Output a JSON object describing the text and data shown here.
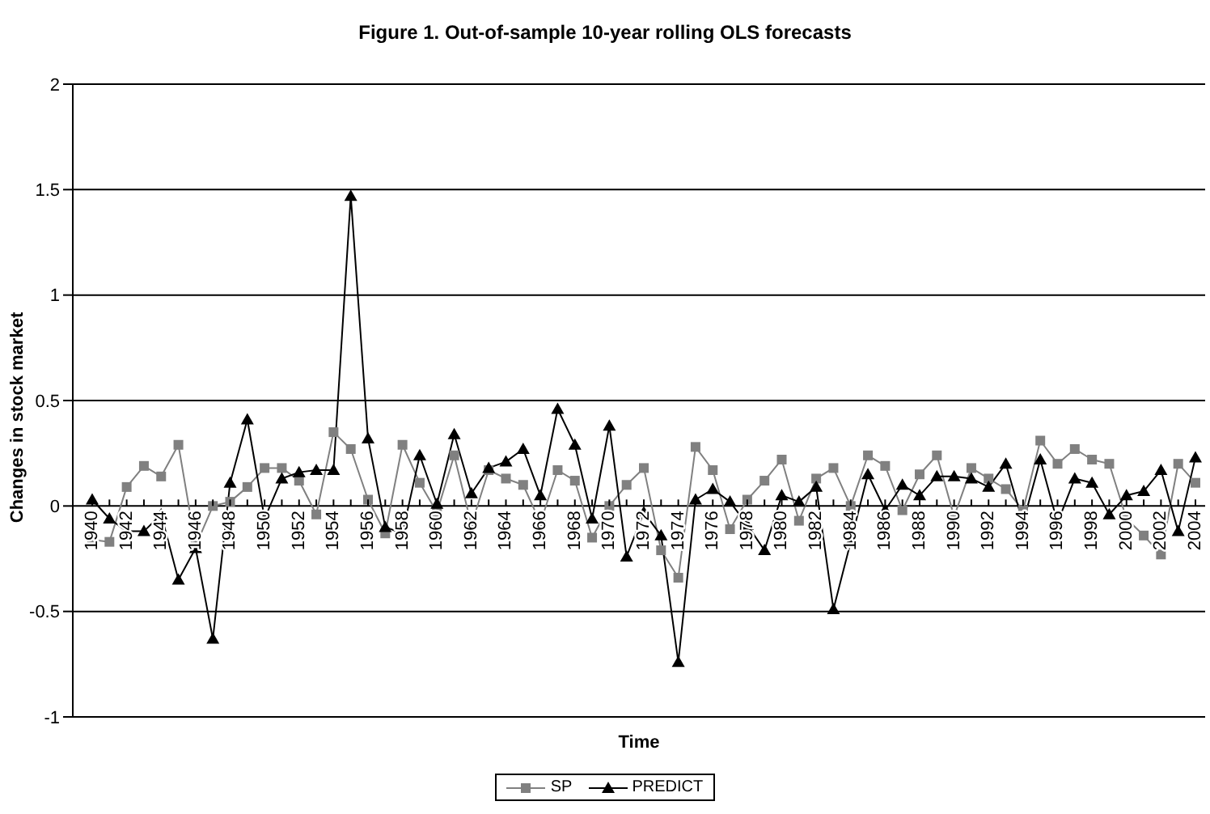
{
  "chart_data": {
    "type": "line",
    "title": "Figure 1. Out-of-sample 10-year rolling OLS forecasts",
    "xlabel": "Time",
    "ylabel": "Changes in stock market",
    "categories": [
      "1940",
      null,
      "1942",
      null,
      "1944",
      null,
      "1946",
      null,
      "1948",
      null,
      "1950",
      null,
      "1952",
      null,
      "1954",
      null,
      "1956",
      null,
      "1958",
      null,
      "1960",
      null,
      "1962",
      null,
      "1964",
      null,
      "1966",
      null,
      "1968",
      null,
      "1970",
      null,
      "1972",
      null,
      "1974",
      null,
      "1976",
      null,
      "1978",
      null,
      "1980",
      null,
      "1982",
      null,
      "1984",
      null,
      "1986",
      null,
      "1988",
      null,
      "1990",
      null,
      "1992",
      null,
      "1994",
      null,
      "1996",
      null,
      "1998",
      null,
      "2000",
      null,
      "2002",
      null,
      "2004"
    ],
    "series": [
      {
        "name": "SP",
        "color": "#808080",
        "marker": "square",
        "values": [
          -0.16,
          -0.17,
          0.09,
          0.19,
          0.14,
          0.29,
          -0.19,
          0.0,
          0.02,
          0.09,
          0.18,
          0.18,
          0.12,
          -0.04,
          0.35,
          0.27,
          0.03,
          -0.13,
          0.29,
          0.11,
          -0.03,
          0.24,
          -0.09,
          0.17,
          0.13,
          0.1,
          -0.08,
          0.17,
          0.12,
          -0.15,
          0.0,
          0.1,
          0.18,
          -0.21,
          -0.34,
          0.28,
          0.17,
          -0.11,
          0.03,
          0.12,
          0.22,
          -0.07,
          0.13,
          0.18,
          0.0,
          0.24,
          0.19,
          -0.02,
          0.15,
          0.24,
          -0.05,
          0.18,
          0.13,
          0.08,
          -0.02,
          0.31,
          0.2,
          0.27,
          0.22,
          0.2,
          -0.06,
          -0.14,
          -0.23,
          0.2,
          0.11
        ]
      },
      {
        "name": "PREDICT",
        "color": "#000000",
        "marker": "triangle",
        "values": [
          0.03,
          -0.06,
          -0.12,
          -0.12,
          -0.04,
          -0.35,
          -0.2,
          -0.63,
          0.11,
          0.41,
          -0.06,
          0.13,
          0.16,
          0.17,
          0.17,
          1.47,
          0.32,
          -0.1,
          -0.13,
          0.24,
          0.01,
          0.34,
          0.06,
          0.18,
          0.21,
          0.27,
          0.05,
          0.46,
          0.29,
          -0.06,
          0.38,
          -0.24,
          -0.03,
          -0.14,
          -0.74,
          0.03,
          0.08,
          0.02,
          -0.09,
          -0.21,
          0.05,
          0.02,
          0.09,
          -0.49,
          -0.17,
          0.15,
          -0.02,
          0.1,
          0.05,
          0.14,
          0.14,
          0.13,
          0.09,
          0.2,
          -0.08,
          0.22,
          -0.08,
          0.13,
          0.11,
          -0.04,
          0.05,
          0.07,
          0.17,
          -0.12,
          0.23
        ]
      }
    ],
    "ylim": [
      -1,
      2
    ],
    "yticks": [
      -1,
      -0.5,
      0,
      0.5,
      1,
      1.5,
      2
    ],
    "grid": "y",
    "legend": "bottom"
  }
}
